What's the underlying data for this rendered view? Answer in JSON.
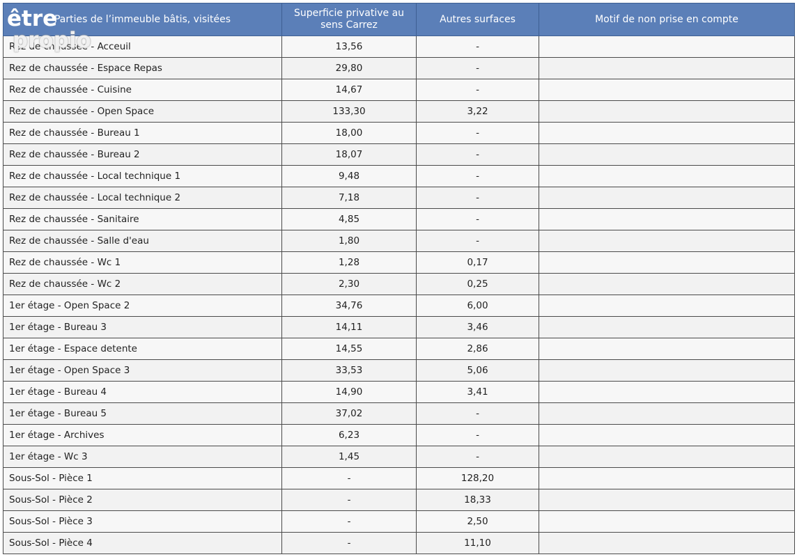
{
  "watermark": {
    "line1": "être",
    "line2": "propio"
  },
  "table": {
    "headers": [
      "Parties de l’immeuble bâtis, visitées",
      "Superficie privative au sens Carrez",
      "Autres surfaces",
      "Motif de non prise en compte"
    ],
    "rows": [
      [
        "Rez de chaussée - Acceuil",
        "13,56",
        "-",
        ""
      ],
      [
        "Rez de chaussée - Espace Repas",
        "29,80",
        "-",
        ""
      ],
      [
        "Rez de chaussée - Cuisine",
        "14,67",
        "-",
        ""
      ],
      [
        "Rez de chaussée - Open Space",
        "133,30",
        "3,22",
        ""
      ],
      [
        "Rez de chaussée - Bureau 1",
        "18,00",
        "-",
        ""
      ],
      [
        "Rez de chaussée - Bureau 2",
        "18,07",
        "-",
        ""
      ],
      [
        "Rez de chaussée - Local technique 1",
        "9,48",
        "-",
        ""
      ],
      [
        "Rez de chaussée - Local technique 2",
        "7,18",
        "-",
        ""
      ],
      [
        "Rez de chaussée - Sanitaire",
        "4,85",
        "-",
        ""
      ],
      [
        "Rez de chaussée - Salle d'eau",
        "1,80",
        "-",
        ""
      ],
      [
        "Rez de chaussée - Wc 1",
        "1,28",
        "0,17",
        ""
      ],
      [
        "Rez de chaussée - Wc 2",
        "2,30",
        "0,25",
        ""
      ],
      [
        "1er étage - Open Space 2",
        "34,76",
        "6,00",
        ""
      ],
      [
        "1er étage - Bureau 3",
        "14,11",
        "3,46",
        ""
      ],
      [
        "1er étage - Espace detente",
        "14,55",
        "2,86",
        ""
      ],
      [
        "1er étage - Open Space 3",
        "33,53",
        "5,06",
        ""
      ],
      [
        "1er étage - Bureau 4",
        "14,90",
        "3,41",
        ""
      ],
      [
        "1er étage - Bureau 5",
        "37,02",
        "-",
        ""
      ],
      [
        "1er étage - Archives",
        "6,23",
        "-",
        ""
      ],
      [
        "1er étage - Wc 3",
        "1,45",
        "-",
        ""
      ],
      [
        "Sous-Sol - Pièce 1",
        "-",
        "128,20",
        ""
      ],
      [
        "Sous-Sol - Pièce 2",
        "-",
        "18,33",
        ""
      ],
      [
        "Sous-Sol - Pièce 3",
        "-",
        "2,50",
        ""
      ],
      [
        "Sous-Sol - Pièce 4",
        "-",
        "11,10",
        ""
      ]
    ]
  }
}
